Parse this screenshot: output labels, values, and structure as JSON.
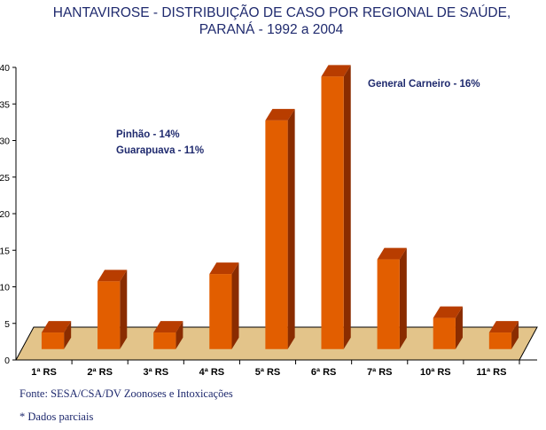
{
  "chart_data": {
    "type": "bar",
    "title": "HANTAVIROSE - DISTRIBUIÇÃO DE CASO POR REGIONAL DE SAÚDE,",
    "subtitle": "PARANÁ - 1992 a 2004",
    "xlabel": "",
    "ylabel": "",
    "ylim": [
      0,
      40
    ],
    "yticks": [
      "0",
      "5",
      "10",
      "15",
      "20",
      "25",
      "30",
      "35",
      "40"
    ],
    "categories": [
      "1ª RS",
      "2ª RS",
      "3ª RS",
      "4ª RS",
      "5ª RS",
      "6ª RS",
      "7ª RS",
      "10ª RS",
      "11ª RS"
    ],
    "values": [
      1,
      8,
      1,
      9,
      30,
      36,
      11,
      3,
      1
    ],
    "annotations": [
      "Pinhão - 14%",
      "Guarapuava - 11%",
      "General Carneiro - 16%"
    ],
    "grid": false,
    "colors": {
      "bar_front": "#e25e00",
      "bar_top": "#b83d00",
      "bar_side": "#8a2c00",
      "floor": "#e3c48a",
      "text": "#1f2a6e"
    }
  },
  "footer": {
    "source": "Fonte: SESA/CSA/DV Zoonoses e Intoxicações",
    "note": "*  Dados parciais"
  }
}
